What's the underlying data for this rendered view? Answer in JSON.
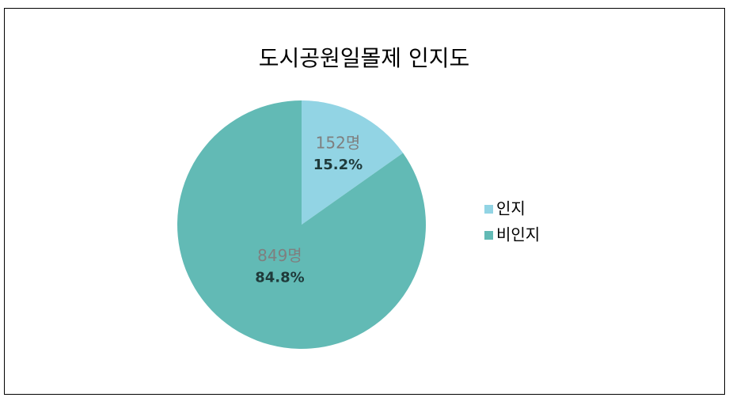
{
  "chart_data": {
    "type": "pie",
    "title": "도시공원일몰제  인지도",
    "categories": [
      "인지",
      "비인지"
    ],
    "values": [
      15.2,
      84.8
    ],
    "value_labels": [
      "15.2%",
      "84.8%"
    ],
    "counts": [
      152,
      849
    ],
    "count_labels": [
      "152명",
      "849명"
    ],
    "colors": [
      "#92d4e4",
      "#62bab5"
    ],
    "legend": "right"
  }
}
